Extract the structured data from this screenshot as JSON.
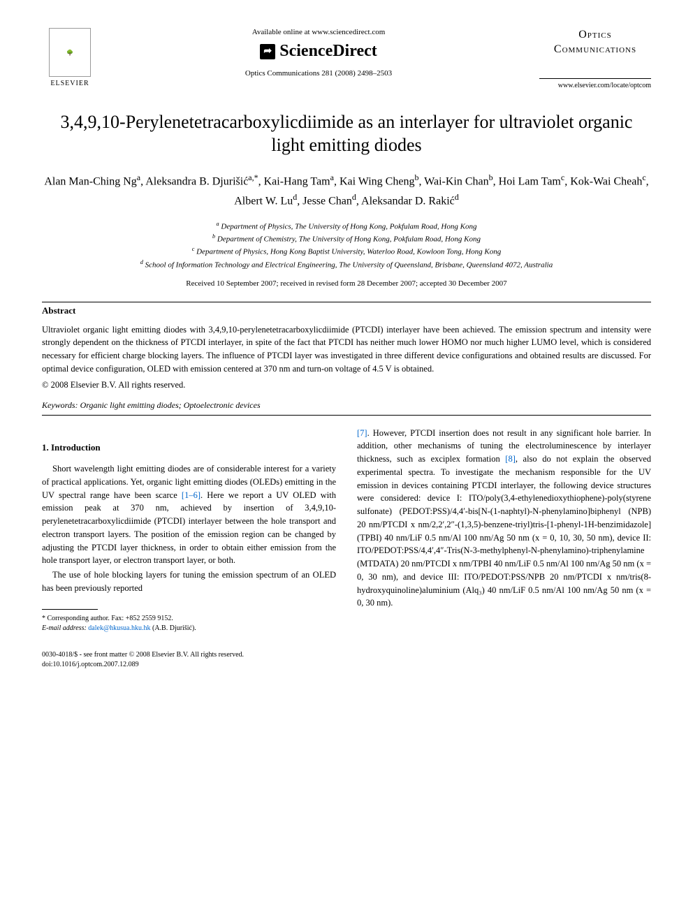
{
  "header": {
    "elsevier_label": "ELSEVIER",
    "available_online": "Available online at www.sciencedirect.com",
    "sciencedirect": "ScienceDirect",
    "journal_ref": "Optics Communications 281 (2008) 2498–2503",
    "optics_title_line1": "Optics",
    "optics_title_line2": "Communications",
    "journal_url": "www.elsevier.com/locate/optcom"
  },
  "article": {
    "title": "3,4,9,10-Perylenetetracarboxylicdiimide as an interlayer for ultraviolet organic light emitting diodes",
    "authors_html": "Alan Man-Ching Ng<sup>a</sup>, Aleksandra B. Djurišić<sup>a,*</sup>, Kai-Hang Tam<sup>a</sup>, Kai Wing Cheng<sup>b</sup>, Wai-Kin Chan<sup>b</sup>, Hoi Lam Tam<sup>c</sup>, Kok-Wai Cheah<sup>c</sup>, Albert W. Lu<sup>d</sup>, Jesse Chan<sup>d</sup>, Aleksandar D. Rakić<sup>d</sup>",
    "affiliations": [
      "a Department of Physics, The University of Hong Kong, Pokfulam Road, Hong Kong",
      "b Department of Chemistry, The University of Hong Kong, Pokfulam Road, Hong Kong",
      "c Department of Physics, Hong Kong Baptist University, Waterloo Road, Kowloon Tong, Hong Kong",
      "d School of Information Technology and Electrical Engineering, The University of Queensland, Brisbane, Queensland 4072, Australia"
    ],
    "received": "Received 10 September 2007; received in revised form 28 December 2007; accepted 30 December 2007"
  },
  "abstract": {
    "heading": "Abstract",
    "text": "Ultraviolet organic light emitting diodes with 3,4,9,10-perylenetetracarboxylicdiimide (PTCDI) interlayer have been achieved. The emission spectrum and intensity were strongly dependent on the thickness of PTCDI interlayer, in spite of the fact that PTCDI has neither much lower HOMO nor much higher LUMO level, which is considered necessary for efficient charge blocking layers. The influence of PTCDI layer was investigated in three different device configurations and obtained results are discussed. For optimal device configuration, OLED with emission centered at 370 nm and turn-on voltage of 4.5 V is obtained.",
    "copyright": "© 2008 Elsevier B.V. All rights reserved."
  },
  "keywords": {
    "label": "Keywords:",
    "text": "Organic light emitting diodes; Optoelectronic devices"
  },
  "body": {
    "section_heading": "1. Introduction",
    "col1_p1": "Short wavelength light emitting diodes are of considerable interest for a variety of practical applications. Yet, organic light emitting diodes (OLEDs) emitting in the UV spectral range have been scarce ",
    "col1_ref1": "[1–6]",
    "col1_p1b": ". Here we report a UV OLED with emission peak at 370 nm, achieved by insertion of 3,4,9,10-perylenetetracarboxylicdiimide (PTCDI) interlayer between the hole transport and electron transport layers. The position of the emission region can be changed by adjusting the PTCDI layer thickness, in order to obtain either emission from the hole transport layer, or electron transport layer, or both.",
    "col1_p2": "The use of hole blocking layers for tuning the emission spectrum of an OLED has been previously reported",
    "col2_ref7": "[7]",
    "col2_p1": ". However, PTCDI insertion does not result in any significant hole barrier. In addition, other mechanisms of tuning the electroluminescence by interlayer thickness, such as exciplex formation ",
    "col2_ref8": "[8]",
    "col2_p1b": ", also do not explain the observed experimental spectra. To investigate the mechanism responsible for the UV emission in devices containing PTCDI interlayer, the following device structures were considered: device I: ITO/poly(3,4-ethylenedioxythiophene)-poly(styrene sulfonate) (PEDOT:PSS)/4,4′-bis[N-(1-naphtyl)-N-phenylamino]biphenyl (NPB) 20 nm/PTCDI x nm/2,2′,2″-(1,3,5)-benzene-triyl)tris-[1-phenyl-1H-benzimidazole] (TPBI) 40 nm/LiF 0.5 nm/Al 100 nm/Ag 50 nm (x = 0, 10, 30, 50 nm), device II: ITO/PEDOT:PSS/4,4′,4″-Tris(N-3-methylphenyl-N-phenylamino)-triphenylamine (MTDATA) 20 nm/PTCDI x nm/TPBI 40 nm/LiF 0.5 nm/Al 100 nm/Ag 50 nm (x = 0, 30 nm), and device III: ITO/PEDOT:PSS/NPB 20 nm/PTCDI x nm/tris(8-hydroxyquinoline)aluminium (Alq₃) 40 nm/LiF 0.5 nm/Al 100 nm/Ag 50 nm (x = 0, 30 nm)."
  },
  "footnote": {
    "corresponding": "* Corresponding author. Fax: +852 2559 9152.",
    "email_label": "E-mail address:",
    "email": "dalek@hkusua.hku.hk",
    "email_paren": "(A.B. Djurišić)."
  },
  "footer": {
    "line1": "0030-4018/$ - see front matter © 2008 Elsevier B.V. All rights reserved.",
    "line2": "doi:10.1016/j.optcom.2007.12.089"
  }
}
